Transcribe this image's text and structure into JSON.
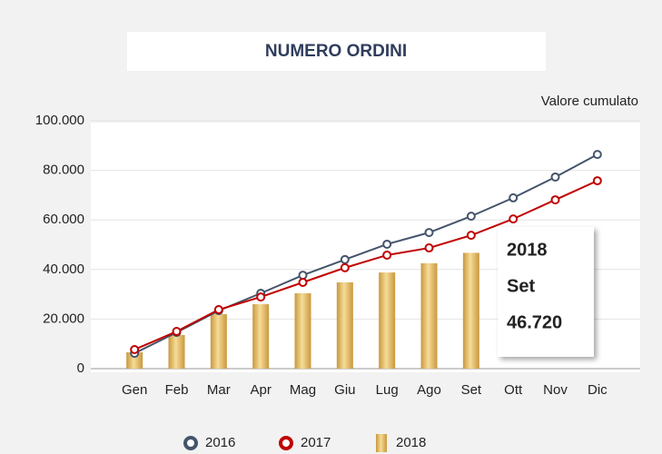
{
  "chart_data": {
    "type": "combo",
    "title": "NUMERO ORDINI",
    "subtitle": "Valore cumulato",
    "categories": [
      "Gen",
      "Feb",
      "Mar",
      "Apr",
      "Mag",
      "Giu",
      "Lug",
      "Ago",
      "Set",
      "Ott",
      "Nov",
      "Dic"
    ],
    "series": [
      {
        "name": "2016",
        "type": "line",
        "color": "#44546a",
        "values": [
          6200,
          14600,
          23400,
          30400,
          37700,
          44000,
          50200,
          54900,
          61500,
          68900,
          77300,
          86400
        ]
      },
      {
        "name": "2017",
        "type": "line",
        "color": "#c00000",
        "values": [
          7700,
          15000,
          23800,
          28900,
          34800,
          40700,
          45800,
          48700,
          53800,
          60400,
          68100,
          75800
        ]
      },
      {
        "name": "2018",
        "type": "bar",
        "color": "#e3b862",
        "values": [
          6600,
          13600,
          22000,
          26000,
          30400,
          34800,
          38800,
          42500,
          46720,
          null,
          null,
          null
        ]
      }
    ],
    "ylim": [
      0,
      100000
    ],
    "yticks": [
      {
        "value": 0,
        "label": "0"
      },
      {
        "value": 20000,
        "label": "20.000"
      },
      {
        "value": 40000,
        "label": "40.000"
      },
      {
        "value": 60000,
        "label": "60.000"
      },
      {
        "value": 80000,
        "label": "80.000"
      },
      {
        "value": 100000,
        "label": "100.000"
      }
    ],
    "grid": true,
    "legend": "bottom",
    "annotation": [
      "2018",
      "Set",
      "46.720"
    ]
  }
}
